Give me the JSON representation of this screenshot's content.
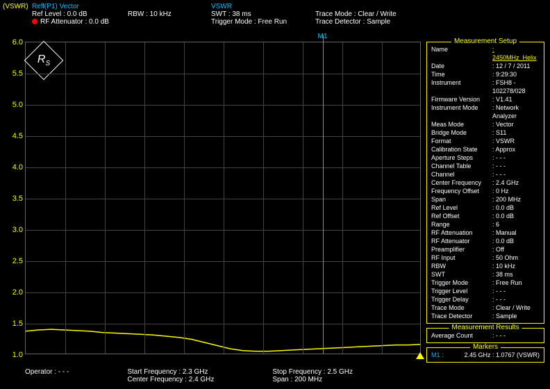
{
  "header": {
    "vswr_label": "(VSWR)",
    "refl": "Refl(P1) Vector",
    "ref_level_label": "Ref Level",
    "ref_level_value": ": 0.0 dB",
    "rf_att_label": "RF Attenuator : 0.0 dB",
    "rbw": "RBW : 10 kHz",
    "vswr": "VSWR",
    "swt": "SWT        : 38 ms",
    "trigger": "Trigger Mode : Free Run",
    "trace_mode": "Trace Mode     : Clear / Write",
    "trace_det": "Trace Detector : Sample"
  },
  "chart": {
    "ylim": [
      1.0,
      6.0
    ],
    "yticks": [
      1.0,
      1.5,
      2.0,
      2.5,
      3.0,
      3.5,
      4.0,
      4.5,
      5.0,
      5.5,
      6.0
    ],
    "xlim": [
      2.3,
      2.5
    ],
    "marker": {
      "label": "M1",
      "x": 0.75
    },
    "line_color": "#ffff00",
    "grid_color": "#444444",
    "marker_color": "#00bfff",
    "y_values": [
      1.38,
      1.4,
      1.41,
      1.4,
      1.39,
      1.38,
      1.36,
      1.35,
      1.34,
      1.33,
      1.32,
      1.3,
      1.28,
      1.25,
      1.2,
      1.15,
      1.1,
      1.07,
      1.06,
      1.06,
      1.07,
      1.08,
      1.09,
      1.1,
      1.11,
      1.12,
      1.13,
      1.14,
      1.15,
      1.16,
      1.16,
      1.17
    ]
  },
  "bottom": {
    "operator": "Operator : - - -",
    "start": "Start Frequency   : 2.3 GHz",
    "center": "Center Frequency : 2.4 GHz",
    "stop": "Stop Frequency : 2.5 GHz",
    "span": "Span                 : 200    MHz"
  },
  "setup": {
    "title": "Measurement Setup",
    "rows": [
      [
        "Name",
        ": 2450MHz_Helix",
        "yellow"
      ],
      [
        "Date",
        ": 12 / 7 / 2011",
        ""
      ],
      [
        "Time",
        ": 9:29:30",
        ""
      ],
      [
        "Instrument",
        ": FSH8 - 102278/028",
        ""
      ],
      [
        "Firmware Version",
        ": V1.41",
        ""
      ],
      [
        "Instrument Mode",
        ": Network Analyzer",
        ""
      ],
      [
        "Meas Mode",
        ": Vector",
        ""
      ],
      [
        "Bridge Mode",
        ": S11",
        ""
      ],
      [
        "Format",
        ": VSWR",
        ""
      ],
      [
        "Calibration State",
        ": Approx",
        ""
      ],
      [
        "Aperture Steps",
        ": - - -",
        ""
      ],
      [
        "Channel Table",
        ": - - -",
        ""
      ],
      [
        "Channel",
        ": - - -",
        ""
      ],
      [
        "Center Frequency",
        ":    2.4    GHz",
        ""
      ],
      [
        "Frequency Offset",
        ":     0     Hz",
        ""
      ],
      [
        "Span",
        ": 200      MHz",
        ""
      ],
      [
        "Ref Level",
        ":     0.0   dB",
        ""
      ],
      [
        "Ref Offset",
        ":     0.0   dB",
        ""
      ],
      [
        "Range",
        ":     6",
        ""
      ],
      [
        "RF Attenuation",
        ": Manual",
        ""
      ],
      [
        "RF Attenuator",
        ":     0.0   dB",
        ""
      ],
      [
        "Preamplifier",
        ": Off",
        ""
      ],
      [
        "RF Input",
        ": 50 Ohm",
        ""
      ],
      [
        "RBW",
        ":    10     kHz",
        ""
      ],
      [
        "SWT",
        ":    38     ms",
        ""
      ],
      [
        "Trigger Mode",
        ": Free Run",
        ""
      ],
      [
        "Trigger Level",
        ": - - -",
        ""
      ],
      [
        "Trigger Delay",
        ": - - -",
        ""
      ],
      [
        "Trace Mode",
        ": Clear / Write",
        ""
      ],
      [
        "Trace Detector",
        ": Sample",
        ""
      ]
    ]
  },
  "results": {
    "title": "Measurement Results",
    "avg_label": "Average Count",
    "avg_val": ": - - -"
  },
  "markers": {
    "title": "Markers",
    "label": "M1 :",
    "value": "2.45 GHz : 1.0767 (VSWR)"
  }
}
